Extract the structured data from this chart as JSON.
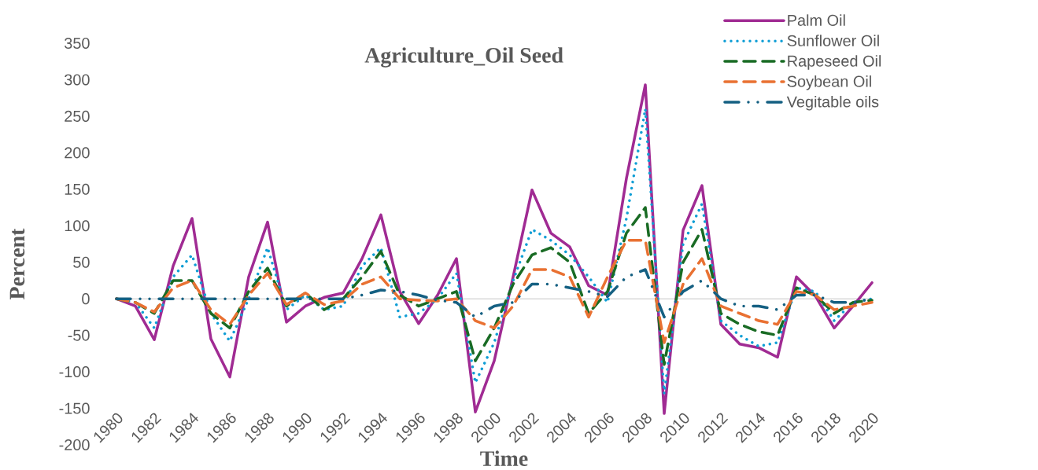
{
  "chart_data": {
    "type": "line",
    "title": "Agriculture_Oil Seed",
    "xlabel": "Time",
    "ylabel": "Percent",
    "x": [
      1980,
      1981,
      1982,
      1983,
      1984,
      1985,
      1986,
      1987,
      1988,
      1989,
      1990,
      1991,
      1992,
      1993,
      1994,
      1995,
      1996,
      1997,
      1998,
      1999,
      2000,
      2001,
      2002,
      2003,
      2004,
      2005,
      2006,
      2007,
      2008,
      2009,
      2010,
      2011,
      2012,
      2013,
      2014,
      2015,
      2016,
      2017,
      2018,
      2019,
      2020
    ],
    "series": [
      {
        "name": "Palm Oil",
        "color": "#a02b93",
        "line_style": "solid",
        "values": [
          0,
          -10,
          -56,
          45,
          110,
          -55,
          -107,
          30,
          105,
          -32,
          -10,
          2,
          8,
          55,
          115,
          10,
          -34,
          5,
          55,
          -155,
          -85,
          30,
          149,
          90,
          71,
          18,
          5,
          165,
          293,
          -157,
          94,
          155,
          -35,
          -62,
          -67,
          -80,
          30,
          4,
          -40,
          -10,
          22
        ]
      },
      {
        "name": "Sunflower Oil",
        "color": "#0f9ed5",
        "line_style": "dotted",
        "values": [
          0,
          -5,
          -40,
          30,
          60,
          -20,
          -58,
          0,
          70,
          -15,
          5,
          -15,
          -10,
          45,
          70,
          -25,
          -20,
          0,
          35,
          -115,
          -60,
          25,
          95,
          80,
          60,
          30,
          -5,
          110,
          260,
          -130,
          75,
          130,
          -30,
          -50,
          -65,
          -60,
          15,
          10,
          -30,
          -5,
          0
        ]
      },
      {
        "name": "Rapeseed Oil",
        "color": "#196b24",
        "line_style": "dashed",
        "values": [
          0,
          -5,
          -20,
          25,
          25,
          -20,
          -40,
          10,
          42,
          -10,
          8,
          -15,
          0,
          30,
          65,
          5,
          -10,
          0,
          10,
          -85,
          -40,
          20,
          60,
          70,
          50,
          -20,
          10,
          90,
          125,
          -90,
          50,
          95,
          -20,
          -35,
          -45,
          -50,
          15,
          5,
          -20,
          -5,
          -2
        ]
      },
      {
        "name": "Soybean Oil",
        "color": "#e97132",
        "line_style": "dashed",
        "values": [
          0,
          -5,
          -18,
          15,
          25,
          -15,
          -35,
          5,
          35,
          -8,
          8,
          -8,
          -3,
          20,
          30,
          0,
          -2,
          -3,
          0,
          -30,
          -40,
          -10,
          40,
          40,
          30,
          -25,
          30,
          80,
          80,
          -60,
          20,
          55,
          -10,
          -20,
          -30,
          -35,
          10,
          5,
          -15,
          -10,
          -5
        ]
      },
      {
        "name": "Vegitable oils",
        "color": "#156082",
        "line_style": "dashdot",
        "values": [
          0,
          0,
          0,
          0,
          0,
          0,
          0,
          0,
          0,
          0,
          0,
          0,
          0,
          5,
          12,
          10,
          5,
          -2,
          -5,
          -25,
          -10,
          -5,
          20,
          20,
          15,
          10,
          3,
          30,
          40,
          -25,
          10,
          25,
          0,
          -10,
          -10,
          -15,
          5,
          5,
          -5,
          -5,
          0
        ]
      }
    ],
    "xlim": [
      1980,
      2020
    ],
    "xticks": [
      1980,
      1982,
      1984,
      1986,
      1988,
      1990,
      1992,
      1994,
      1996,
      1998,
      2000,
      2002,
      2004,
      2006,
      2008,
      2010,
      2012,
      2014,
      2016,
      2018,
      2020
    ],
    "ylim": [
      -200,
      350
    ],
    "yticks": [
      -200,
      -150,
      -100,
      -50,
      0,
      50,
      100,
      150,
      200,
      250,
      300,
      350
    ],
    "legend": "top right"
  }
}
